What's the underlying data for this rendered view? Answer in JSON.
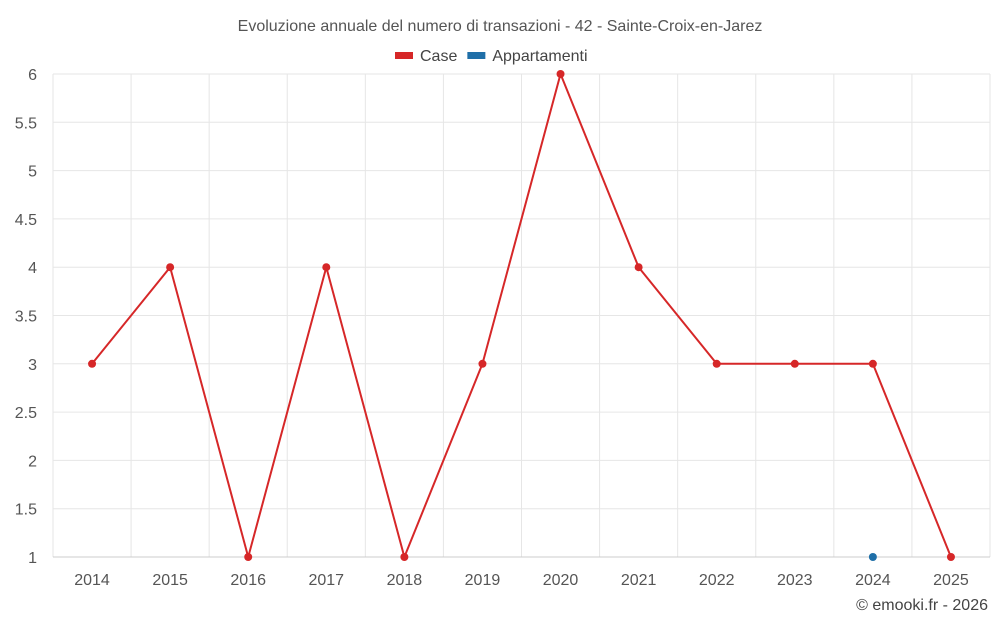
{
  "chart_data": {
    "type": "line",
    "title": "Evoluzione annuale del numero di transazioni - 42 - Sainte-Croix-en-Jarez",
    "xlabel": "",
    "ylabel": "",
    "categories": [
      "2014",
      "2015",
      "2016",
      "2017",
      "2018",
      "2019",
      "2020",
      "2021",
      "2022",
      "2023",
      "2024",
      "2025"
    ],
    "ylim": [
      1,
      6
    ],
    "yticks": [
      1,
      1.5,
      2,
      2.5,
      3,
      3.5,
      4,
      4.5,
      5,
      5.5,
      6
    ],
    "ytick_labels": [
      "1",
      "1.5",
      "2",
      "2.5",
      "3",
      "3.5",
      "4",
      "4.5",
      "5",
      "5.5",
      "6"
    ],
    "grid": true,
    "legend_position": "top-center",
    "series": [
      {
        "name": "Case",
        "color": "#d62728",
        "values": [
          3,
          4,
          1,
          4,
          1,
          3,
          6,
          4,
          3,
          3,
          3,
          1
        ]
      },
      {
        "name": "Appartamenti",
        "color": "#1f6fa8",
        "values": [
          null,
          null,
          null,
          null,
          null,
          null,
          null,
          null,
          null,
          null,
          1,
          null
        ]
      }
    ],
    "credit": "© emooki.fr - 2026"
  }
}
